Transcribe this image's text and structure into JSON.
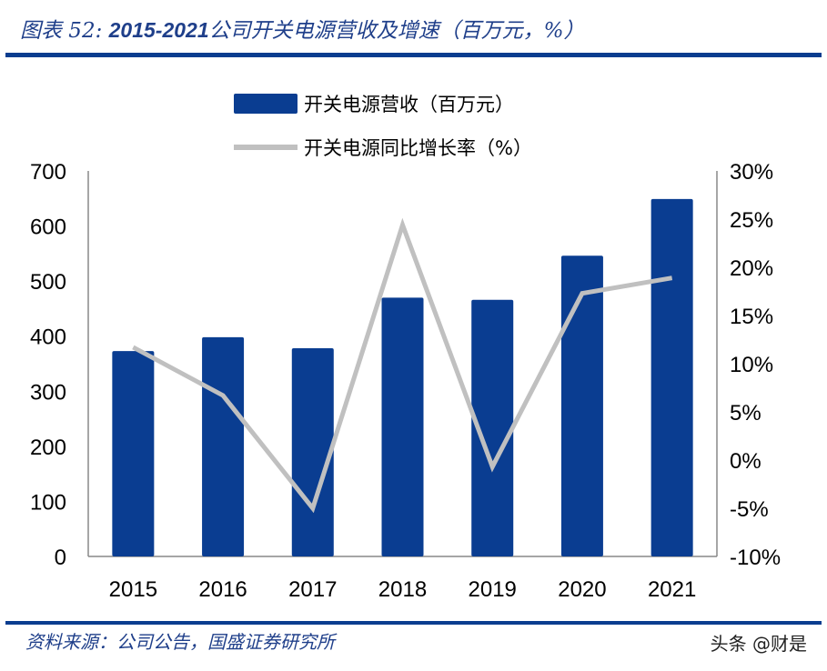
{
  "title": {
    "prefix": "图表 52:",
    "years": "2015-2021",
    "text": "公司开关电源营收及增速（百万元，%）"
  },
  "source": "资料来源：公司公告，国盛证券研究所",
  "watermark": "头条 @财是",
  "chart_data": {
    "type": "bar+line",
    "categories": [
      "2015",
      "2016",
      "2017",
      "2018",
      "2019",
      "2020",
      "2021"
    ],
    "series": [
      {
        "name": "开关电源营收（百万元）",
        "type": "bar",
        "axis": "left",
        "color": "#0a3d91",
        "values": [
          373,
          398,
          378,
          470,
          466,
          546,
          649
        ]
      },
      {
        "name": "开关电源同比增长率（%）",
        "type": "line",
        "axis": "right",
        "color": "#c0c0c0",
        "values": [
          11.7,
          6.7,
          -5.0,
          24.4,
          -0.7,
          17.3,
          18.9
        ]
      }
    ],
    "left_axis": {
      "min": 0,
      "max": 700,
      "ticks": [
        "0",
        "100",
        "200",
        "300",
        "400",
        "500",
        "600",
        "700"
      ]
    },
    "right_axis": {
      "min": -10,
      "max": 30,
      "ticks": [
        "-10%",
        "-5%",
        "0%",
        "5%",
        "10%",
        "15%",
        "20%",
        "25%",
        "30%"
      ]
    },
    "legend_position": "top-center",
    "grid": false
  }
}
